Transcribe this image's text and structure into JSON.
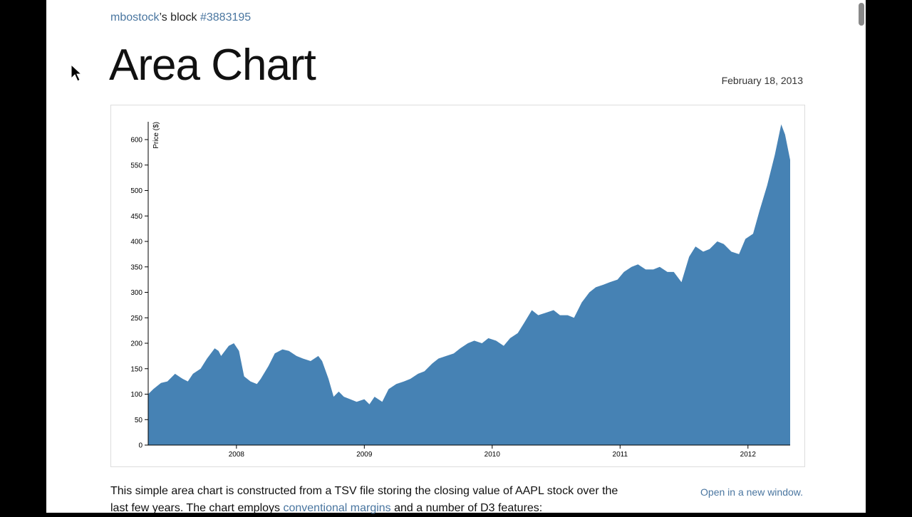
{
  "header": {
    "author": "mbostock",
    "block_word": "’s block",
    "block_id": "#3883195",
    "title": "Area Chart",
    "date": "February 18, 2013"
  },
  "chart_data": {
    "type": "area",
    "y_label": "Price ($)",
    "color": "#4682b4",
    "x": [
      2007.31,
      2007.35,
      2007.41,
      2007.46,
      2007.52,
      2007.58,
      2007.62,
      2007.66,
      2007.72,
      2007.77,
      2007.83,
      2007.86,
      2007.88,
      2007.94,
      2007.98,
      2008.02,
      2008.06,
      2008.11,
      2008.16,
      2008.19,
      2008.25,
      2008.3,
      2008.36,
      2008.41,
      2008.47,
      2008.52,
      2008.58,
      2008.64,
      2008.67,
      2008.72,
      2008.76,
      2008.8,
      2008.84,
      2008.89,
      2008.94,
      2009.0,
      2009.04,
      2009.08,
      2009.14,
      2009.19,
      2009.25,
      2009.31,
      2009.36,
      2009.42,
      2009.47,
      2009.53,
      2009.58,
      2009.64,
      2009.7,
      2009.75,
      2009.81,
      2009.86,
      2009.92,
      2009.97,
      2010.03,
      2010.09,
      2010.14,
      2010.2,
      2010.25,
      2010.31,
      2010.36,
      2010.42,
      2010.48,
      2010.53,
      2010.59,
      2010.64,
      2010.7,
      2010.76,
      2010.81,
      2010.87,
      2010.92,
      2010.98,
      2011.03,
      2011.09,
      2011.14,
      2011.2,
      2011.26,
      2011.31,
      2011.37,
      2011.42,
      2011.48,
      2011.54,
      2011.59,
      2011.65,
      2011.7,
      2011.76,
      2011.81,
      2011.87,
      2011.93,
      2011.98,
      2012.04,
      2012.09,
      2012.15,
      2012.21,
      2012.26,
      2012.29,
      2012.33
    ],
    "values": [
      100,
      110,
      122,
      125,
      140,
      130,
      125,
      140,
      150,
      170,
      190,
      185,
      175,
      195,
      200,
      185,
      135,
      125,
      120,
      130,
      155,
      180,
      188,
      185,
      175,
      170,
      165,
      175,
      165,
      130,
      95,
      105,
      95,
      90,
      85,
      90,
      80,
      95,
      85,
      110,
      120,
      125,
      130,
      140,
      145,
      160,
      170,
      175,
      180,
      190,
      200,
      205,
      200,
      210,
      205,
      195,
      210,
      220,
      240,
      265,
      255,
      260,
      265,
      255,
      255,
      250,
      280,
      300,
      310,
      315,
      320,
      325,
      340,
      350,
      355,
      345,
      345,
      350,
      340,
      340,
      320,
      370,
      390,
      380,
      385,
      400,
      395,
      380,
      375,
      405,
      415,
      460,
      510,
      570,
      630,
      610,
      560
    ],
    "xlim": [
      2007.31,
      2012.33
    ],
    "xticks": [
      2008,
      2009,
      2010,
      2011,
      2012
    ],
    "ylim": [
      0,
      635
    ],
    "yticks": [
      0,
      50,
      100,
      150,
      200,
      250,
      300,
      350,
      400,
      450,
      500,
      550,
      600
    ]
  },
  "body": {
    "text_1": "This simple area chart is constructed from a TSV file storing the closing value of AAPL stock over the last few years. The chart employs ",
    "link_1": "conventional margins",
    "text_2": " and a number of D3 features:",
    "open_link": "Open in a new window."
  }
}
